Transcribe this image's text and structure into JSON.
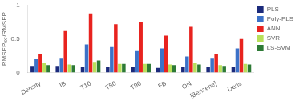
{
  "chart_data": {
    "type": "bar",
    "ylabel": "RMSEPₑₓₜ/RMSEP",
    "categories": [
      "Density",
      "IB",
      "T10",
      "T50",
      "T90",
      "FB",
      "ON",
      "[Benzene]",
      "Dens"
    ],
    "series": [
      {
        "name": "PLS",
        "color": "#1b2a7b",
        "values": [
          0.1,
          0.1,
          0.09,
          0.08,
          0.09,
          0.07,
          0.09,
          0.09,
          0.08
        ]
      },
      {
        "name": "Poly-PLS",
        "color": "#3c72c8",
        "values": [
          0.2,
          0.22,
          0.42,
          0.38,
          0.32,
          0.36,
          0.24,
          0.22,
          0.36
        ]
      },
      {
        "name": "ANN",
        "color": "#e8231f",
        "values": [
          0.28,
          0.62,
          0.88,
          0.72,
          0.76,
          0.55,
          0.68,
          0.28,
          0.5
        ]
      },
      {
        "name": "SVR",
        "color": "#b8e05a",
        "values": [
          0.14,
          0.12,
          0.16,
          0.13,
          0.13,
          0.12,
          0.14,
          0.11,
          0.13
        ]
      },
      {
        "name": "LS-SVM",
        "color": "#2d7a35",
        "values": [
          0.11,
          0.11,
          0.18,
          0.13,
          0.13,
          0.11,
          0.12,
          0.1,
          0.12
        ]
      }
    ],
    "ylim": [
      0,
      1
    ],
    "yticks": [
      0,
      0.5,
      1
    ],
    "grid": false,
    "legend": "upper right"
  }
}
